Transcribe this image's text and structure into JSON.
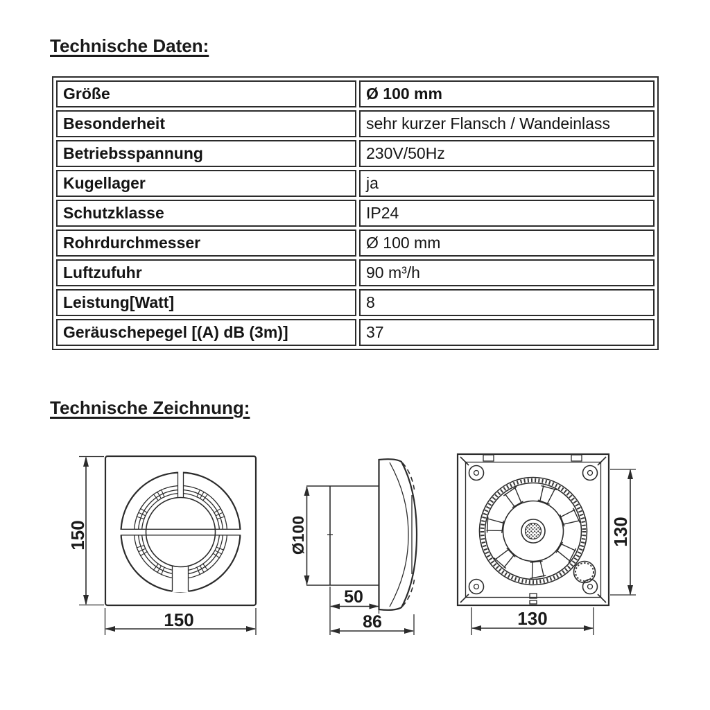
{
  "page": {
    "background": "#ffffff",
    "text_color": "#1a1a1a",
    "line_color": "#2b2b2b"
  },
  "sections": {
    "technical_data": {
      "heading": "Technische Daten:"
    },
    "technical_drawing": {
      "heading": "Technische Zeichnung:"
    }
  },
  "spec_table": {
    "rows": [
      {
        "label": "Größe",
        "value": "Ø 100 mm",
        "value_bold": true
      },
      {
        "label": "Besonderheit",
        "value": "sehr kurzer Flansch / Wandeinlass",
        "value_bold": false
      },
      {
        "label": "Betriebsspannung",
        "value": "230V/50Hz",
        "value_bold": false
      },
      {
        "label": "Kugellager",
        "value": "ja",
        "value_bold": false
      },
      {
        "label": "Schutzklasse",
        "value": "IP24",
        "value_bold": false
      },
      {
        "label": "Rohrdurchmesser",
        "value": "Ø 100 mm",
        "value_bold": false
      },
      {
        "label": "Luftzufuhr",
        "value": "90 m³/h",
        "value_bold": false
      },
      {
        "label": "Leistung[Watt]",
        "value": "8",
        "value_bold": false
      },
      {
        "label": "Geräuschepegel [(A) dB (3m)]",
        "value": "37",
        "value_bold": false
      }
    ]
  },
  "drawings": {
    "front_view": {
      "height_label": "150",
      "width_label": "150"
    },
    "side_view": {
      "diameter_label": "Ø100",
      "duct_depth_label": "50",
      "total_depth_label": "86"
    },
    "back_view": {
      "height_label": "130",
      "width_label": "130"
    }
  }
}
